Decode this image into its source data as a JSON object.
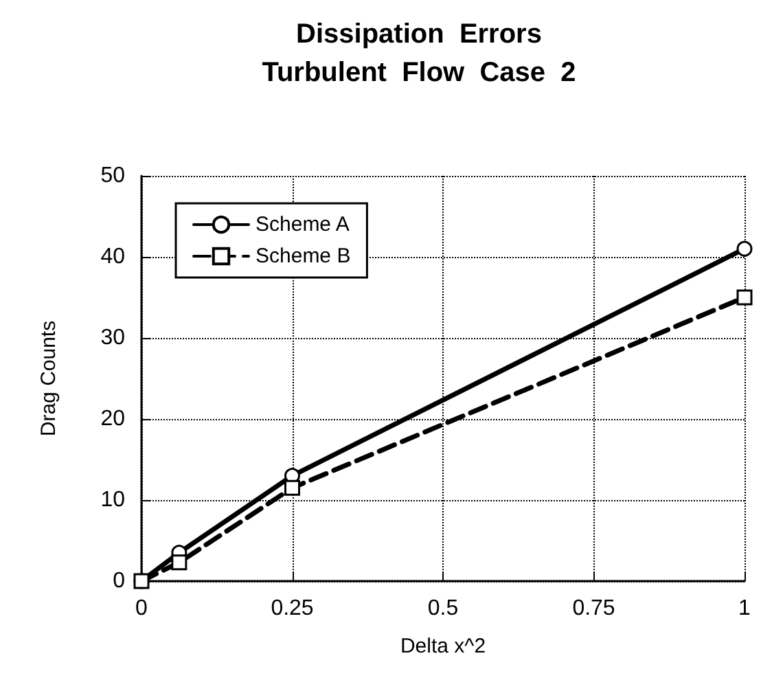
{
  "chart_data": {
    "type": "line",
    "title": "Dissipation  Errors\nTurbulent  Flow  Case  2",
    "xlabel": "Delta x^2",
    "ylabel": "Drag Counts",
    "x": [
      0,
      0.0625,
      0.25,
      1
    ],
    "series": [
      {
        "name": "Scheme A",
        "color": "#000000",
        "values": [
          0,
          3.5,
          13,
          41
        ],
        "marker": "circle",
        "line_style": "solid"
      },
      {
        "name": "Scheme B",
        "color": "#000000",
        "values": [
          0,
          2.3,
          11.5,
          35
        ],
        "marker": "square",
        "line_style": "dashed"
      }
    ],
    "xlim": [
      0,
      1
    ],
    "xticks": [
      0,
      0.25,
      0.5,
      0.75,
      1
    ],
    "ylim": [
      0,
      50
    ],
    "yticks": [
      0,
      10,
      20,
      30,
      40,
      50
    ],
    "grid": true,
    "legend": "top left"
  }
}
